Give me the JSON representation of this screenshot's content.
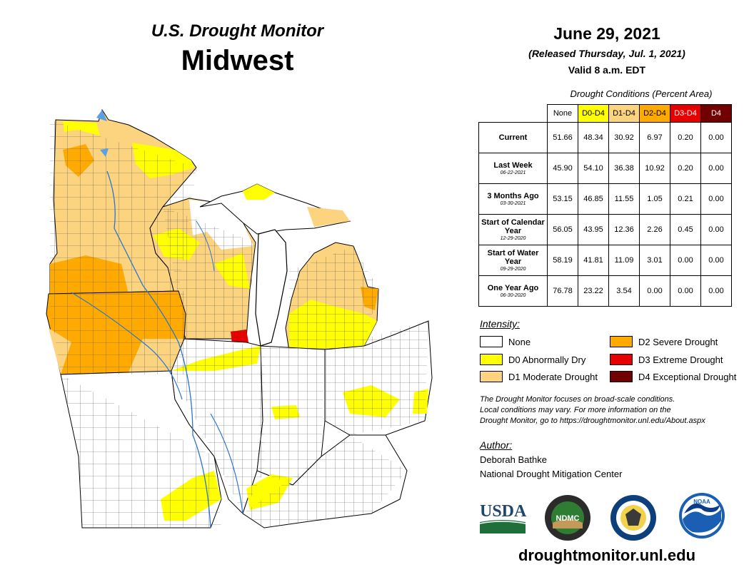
{
  "header": {
    "product": "U.S. Drought Monitor",
    "region": "Midwest",
    "date": "June 29, 2021",
    "released": "(Released Thursday, Jul. 1, 2021)",
    "valid": "Valid 8 a.m. EDT"
  },
  "table": {
    "caption": "Drought Conditions (Percent Area)",
    "columns": [
      "None",
      "D0-D4",
      "D1-D4",
      "D2-D4",
      "D3-D4",
      "D4"
    ],
    "column_colors": [
      "#ffffff",
      "#ffff00",
      "#fcd37f",
      "#ffaa00",
      "#e60000",
      "#730000"
    ],
    "rows": [
      {
        "label": "Current",
        "date": "",
        "values": [
          "51.66",
          "48.34",
          "30.92",
          "6.97",
          "0.20",
          "0.00"
        ]
      },
      {
        "label": "Last Week",
        "date": "06-22-2021",
        "values": [
          "45.90",
          "54.10",
          "36.38",
          "10.92",
          "0.20",
          "0.00"
        ]
      },
      {
        "label": "3 Months Ago",
        "date": "03-30-2021",
        "values": [
          "53.15",
          "46.85",
          "11.55",
          "1.05",
          "0.21",
          "0.00"
        ]
      },
      {
        "label": "Start of Calendar Year",
        "date": "12-29-2020",
        "values": [
          "56.05",
          "43.95",
          "12.36",
          "2.26",
          "0.45",
          "0.00"
        ]
      },
      {
        "label": "Start of Water Year",
        "date": "09-29-2020",
        "values": [
          "58.19",
          "41.81",
          "11.09",
          "3.01",
          "0.00",
          "0.00"
        ]
      },
      {
        "label": "One Year Ago",
        "date": "06-30-2020",
        "values": [
          "76.78",
          "23.22",
          "3.54",
          "0.00",
          "0.00",
          "0.00"
        ]
      }
    ]
  },
  "legend": {
    "title": "Intensity:",
    "items": [
      {
        "label": "None",
        "color": "#ffffff"
      },
      {
        "label": "D0 Abnormally Dry",
        "color": "#ffff00"
      },
      {
        "label": "D1 Moderate Drought",
        "color": "#fcd37f"
      },
      {
        "label": "D2 Severe Drought",
        "color": "#ffaa00"
      },
      {
        "label": "D3 Extreme Drought",
        "color": "#e60000"
      },
      {
        "label": "D4 Exceptional Drought",
        "color": "#730000"
      }
    ]
  },
  "note": {
    "line1": "The Drought Monitor focuses on broad-scale conditions.",
    "line2": "Local conditions may vary. For more information on the",
    "line3": "Drought Monitor, go to https://droughtmonitor.unl.edu/About.aspx"
  },
  "author": {
    "heading": "Author:",
    "name": "Deborah Bathke",
    "org": "National Drought Mitigation Center"
  },
  "logos": {
    "usda": "USDA",
    "ndmc": "NDMC",
    "noaa": "NOAA"
  },
  "url": "droughtmonitor.unl.edu"
}
